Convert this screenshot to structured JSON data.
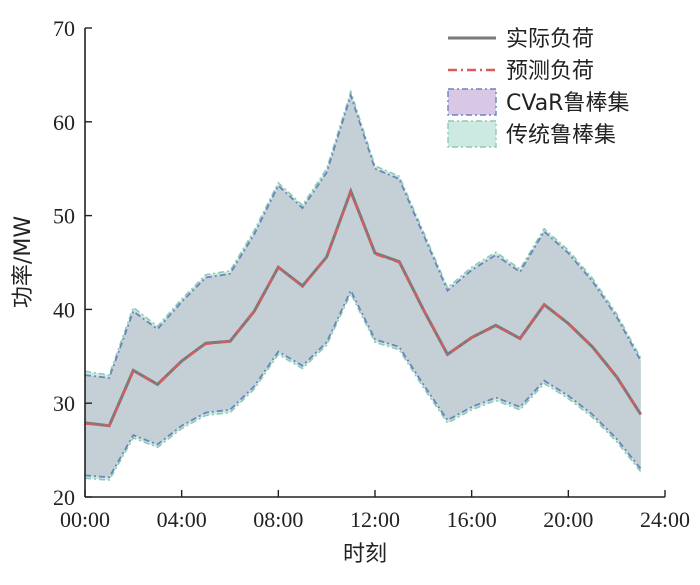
{
  "chart_data": {
    "type": "area",
    "xlabel": "时刻",
    "ylabel": "功率/MW",
    "xlim": [
      0,
      24
    ],
    "ylim": [
      20,
      70
    ],
    "x_ticks": [
      "00:00",
      "04:00",
      "08:00",
      "12:00",
      "16:00",
      "20:00",
      "24:00"
    ],
    "y_ticks": [
      "20",
      "30",
      "40",
      "50",
      "60",
      "70"
    ],
    "grid": false,
    "legend_position": "top-right",
    "x": [
      0,
      1,
      2,
      3,
      4,
      5,
      6,
      7,
      8,
      9,
      10,
      11,
      12,
      13,
      14,
      15,
      16,
      17,
      18,
      19,
      20,
      21,
      22,
      23,
      24
    ],
    "series": [
      {
        "name": "实际负荷",
        "style": "solid line",
        "color": "#7a7a7a",
        "values": [
          27.9,
          27.6,
          33.5,
          32.0,
          34.5,
          36.4,
          36.6,
          39.8,
          44.5,
          42.5,
          45.6,
          52.6,
          46.0,
          45.1,
          40.0,
          35.2,
          37.0,
          38.3,
          36.9,
          40.5,
          38.5,
          36.0,
          32.8,
          28.8,
          null
        ]
      },
      {
        "name": "预测负荷",
        "style": "dash-dot line",
        "color": "#e0585a",
        "values": [
          27.8,
          27.6,
          33.4,
          32.0,
          34.5,
          36.3,
          36.6,
          39.8,
          44.5,
          42.4,
          45.6,
          52.5,
          45.9,
          45.0,
          40.0,
          35.2,
          37.0,
          38.2,
          36.9,
          40.5,
          38.5,
          36.0,
          32.8,
          28.8,
          null
        ]
      },
      {
        "name": "CVaR鲁棒集",
        "style": "band",
        "color": "#d9c7e6",
        "upper": [
          33.0,
          32.7,
          39.8,
          37.9,
          40.8,
          43.4,
          43.8,
          48.0,
          53.2,
          50.8,
          54.6,
          62.8,
          55.0,
          53.9,
          48.0,
          42.0,
          44.2,
          45.8,
          44.0,
          48.3,
          46.0,
          43.0,
          39.2,
          34.5,
          null
        ],
        "lower": [
          22.3,
          22.1,
          26.6,
          25.6,
          27.6,
          29.0,
          29.3,
          31.8,
          35.5,
          34.0,
          36.5,
          42.0,
          36.8,
          36.0,
          32.0,
          28.2,
          29.6,
          30.6,
          29.6,
          32.4,
          30.8,
          28.8,
          26.2,
          23.0,
          null
        ]
      },
      {
        "name": "传统鲁棒集",
        "style": "band",
        "color": "#cdeae2",
        "upper": [
          33.4,
          33.0,
          40.2,
          38.2,
          41.1,
          43.7,
          44.1,
          48.4,
          53.5,
          51.1,
          55.0,
          63.2,
          55.3,
          54.2,
          48.3,
          42.3,
          44.5,
          46.1,
          44.3,
          48.6,
          46.3,
          43.3,
          39.5,
          34.8,
          null
        ],
        "lower": [
          22.0,
          21.8,
          26.3,
          25.3,
          27.3,
          28.7,
          29.0,
          31.5,
          35.2,
          33.7,
          36.2,
          41.7,
          36.5,
          35.7,
          31.7,
          27.9,
          29.3,
          30.3,
          29.3,
          32.1,
          30.5,
          28.5,
          25.9,
          22.7,
          null
        ]
      }
    ]
  },
  "colors": {
    "overlap_band": "#c4cfd6",
    "cvar_edge": "#6a85bb",
    "traditional_edge": "#8fc9b4"
  }
}
